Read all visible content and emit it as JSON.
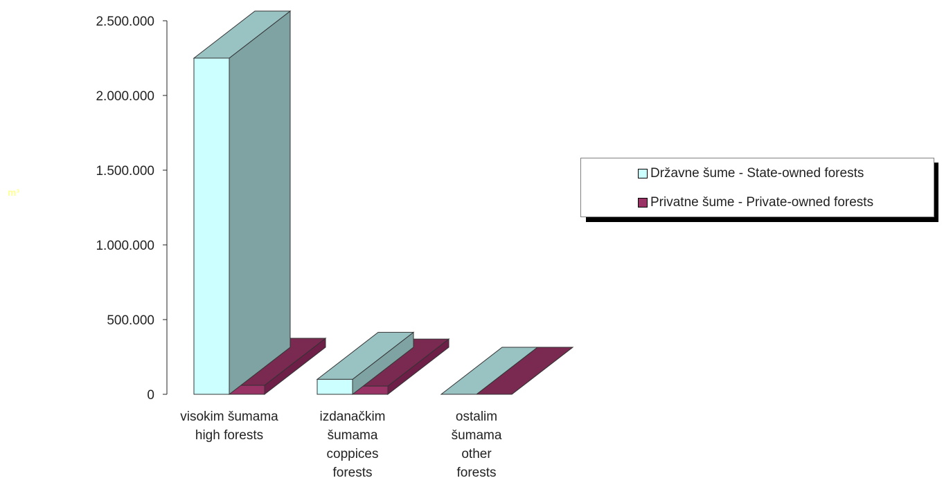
{
  "chart_data": {
    "type": "bar",
    "ylabel": "m³",
    "ylim": [
      0,
      2500000
    ],
    "yticks": [
      {
        "value": 0,
        "label": "0"
      },
      {
        "value": 500000,
        "label": "500.000"
      },
      {
        "value": 1000000,
        "label": "1.000.000"
      },
      {
        "value": 1500000,
        "label": "1.500.000"
      },
      {
        "value": 2000000,
        "label": "2.000.000"
      },
      {
        "value": 2500000,
        "label": "2.500.000"
      }
    ],
    "categories": [
      [
        "visokim šumama",
        "high forests"
      ],
      [
        "izdanačkim",
        "šumama",
        "coppices",
        "forests"
      ],
      [
        "ostalim",
        "šumama",
        "other",
        "forests"
      ]
    ],
    "series": [
      {
        "name": "Državne šume - State-owned forests",
        "values": [
          2250000,
          100000,
          0
        ],
        "color": "#ccffff",
        "side_color": "#7fa3a3",
        "top_color": "#99c2c2"
      },
      {
        "name": "Privatne šume - Private-owned forests",
        "values": [
          60000,
          55000,
          0
        ],
        "color": "#993366",
        "side_color": "#6e1f48",
        "top_color": "#7a2a50"
      }
    ],
    "legend_position": "right",
    "grid": false,
    "unit_color": "#ffff99"
  }
}
